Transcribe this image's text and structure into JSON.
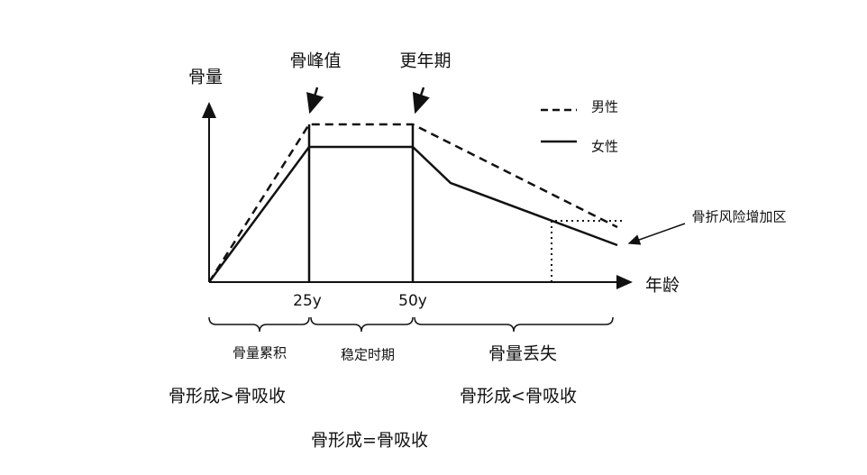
{
  "axes": {
    "y_label": "骨量",
    "x_label": "年龄"
  },
  "annotations": {
    "peak": "骨峰值",
    "menopause": "更年期",
    "risk_zone": "骨折风险增加区"
  },
  "legend": [
    {
      "name": "男性",
      "style": "dashed"
    },
    {
      "name": "女性",
      "style": "solid"
    }
  ],
  "ticks": [
    "25y",
    "50y"
  ],
  "phases": [
    {
      "name": "骨量累积",
      "balance": "骨形成>骨吸收"
    },
    {
      "name": "稳定时期",
      "balance": "骨形成=骨吸收"
    },
    {
      "name": "骨量丢失",
      "balance": "骨形成<骨吸收"
    }
  ]
}
